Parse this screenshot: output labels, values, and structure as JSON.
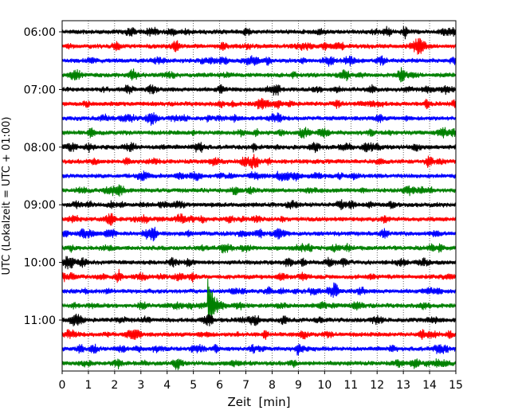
{
  "chart_data": {
    "type": "line",
    "title": "",
    "xlabel": "Zeit  [min]",
    "ylabel": "UTC (Lokalzeit = UTC + 01:00)",
    "xlim": [
      0,
      15
    ],
    "x_ticks": [
      0,
      1,
      2,
      3,
      4,
      5,
      6,
      7,
      8,
      9,
      10,
      11,
      12,
      13,
      14,
      15
    ],
    "x_tick_labels": [
      "0",
      "1",
      "2",
      "3",
      "4",
      "5",
      "6",
      "7",
      "8",
      "9",
      "10",
      "11",
      "12",
      "13",
      "14",
      "15"
    ],
    "y_tick_labels": [
      "06:00",
      "07:00",
      "08:00",
      "09:00",
      "10:00",
      "11:00"
    ],
    "grid": "vertical dotted lines at each minute",
    "trace_interval": "15 min",
    "trace_colors": [
      "#000000",
      "#ff0000",
      "#0000ff",
      "#008000"
    ],
    "traces": [
      {
        "start": "06:00",
        "color": "#000000"
      },
      {
        "start": "06:15",
        "color": "#ff0000"
      },
      {
        "start": "06:30",
        "color": "#0000ff"
      },
      {
        "start": "06:45",
        "color": "#008000"
      },
      {
        "start": "07:00",
        "color": "#000000"
      },
      {
        "start": "07:15",
        "color": "#ff0000"
      },
      {
        "start": "07:30",
        "color": "#0000ff"
      },
      {
        "start": "07:45",
        "color": "#008000"
      },
      {
        "start": "08:00",
        "color": "#000000"
      },
      {
        "start": "08:15",
        "color": "#ff0000"
      },
      {
        "start": "08:30",
        "color": "#0000ff"
      },
      {
        "start": "08:45",
        "color": "#008000"
      },
      {
        "start": "09:00",
        "color": "#000000"
      },
      {
        "start": "09:15",
        "color": "#ff0000"
      },
      {
        "start": "09:30",
        "color": "#0000ff"
      },
      {
        "start": "09:45",
        "color": "#008000"
      },
      {
        "start": "10:00",
        "color": "#000000"
      },
      {
        "start": "10:15",
        "color": "#ff0000"
      },
      {
        "start": "10:30",
        "color": "#0000ff"
      },
      {
        "start": "10:45",
        "color": "#008000",
        "event_minute": 5.6,
        "event_amplitude": "large"
      },
      {
        "start": "11:00",
        "color": "#000000"
      },
      {
        "start": "11:15",
        "color": "#ff0000"
      },
      {
        "start": "11:30",
        "color": "#0000ff",
        "event_minute": 9.0,
        "event_amplitude": "small"
      },
      {
        "start": "11:45",
        "color": "#008000"
      }
    ]
  }
}
